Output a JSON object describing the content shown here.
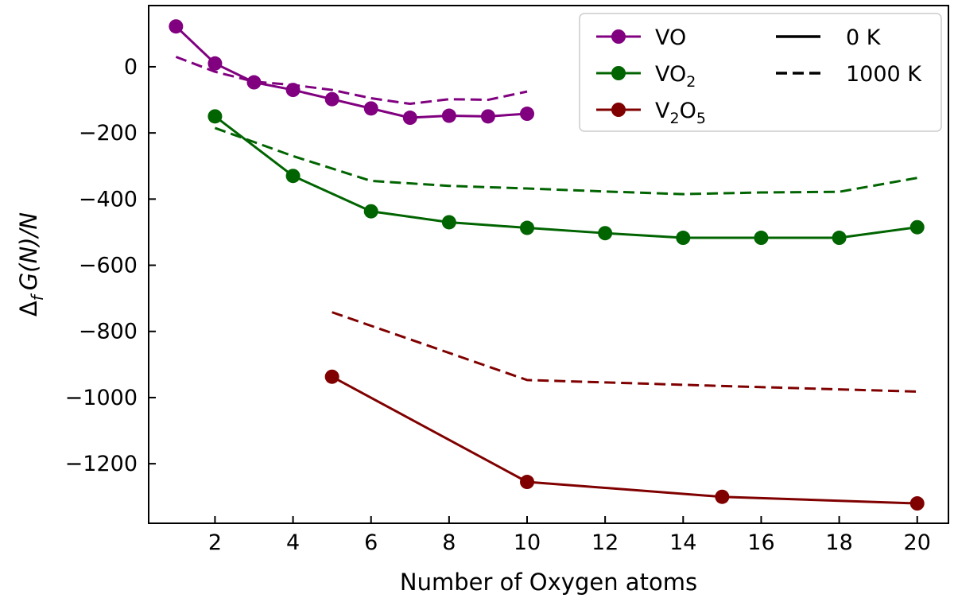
{
  "chart_data": {
    "type": "line",
    "title": "",
    "xlabel": "Number of Oxygen atoms",
    "ylabel": "Δf G(N)/N",
    "xlim": [
      0.3,
      20.8
    ],
    "ylim": [
      -1380,
      185
    ],
    "xticks": [
      2,
      4,
      6,
      8,
      10,
      12,
      14,
      16,
      18,
      20
    ],
    "yticks": [
      0,
      -200,
      -400,
      -600,
      -800,
      -1000,
      -1200
    ],
    "grid": false,
    "legend_position": "top-right",
    "series": [
      {
        "name": "VO",
        "color": "#800080",
        "line_style": "solid",
        "marker": "circle",
        "temperature": "0 K",
        "x": [
          1,
          2,
          3,
          4,
          5,
          6,
          7,
          8,
          9,
          10
        ],
        "y": [
          122,
          10,
          -47,
          -70,
          -98,
          -126,
          -154,
          -148,
          -150,
          -142
        ]
      },
      {
        "name": "VO",
        "color": "#800080",
        "line_style": "dashed",
        "marker": "none",
        "temperature": "1000 K",
        "x": [
          1,
          2,
          3,
          4,
          5,
          6,
          7,
          8,
          9,
          10
        ],
        "y": [
          30,
          -15,
          -45,
          -55,
          -70,
          -95,
          -112,
          -98,
          -100,
          -75
        ]
      },
      {
        "name": "VO2",
        "color": "#006400",
        "line_style": "solid",
        "marker": "circle",
        "temperature": "0 K",
        "x": [
          2,
          4,
          6,
          8,
          10,
          12,
          14,
          16,
          18,
          20
        ],
        "y": [
          -150,
          -330,
          -437,
          -470,
          -487,
          -503,
          -517,
          -517,
          -517,
          -485
        ]
      },
      {
        "name": "VO2",
        "color": "#006400",
        "line_style": "dashed",
        "marker": "none",
        "temperature": "1000 K",
        "x": [
          2,
          4,
          6,
          8,
          10,
          12,
          14,
          16,
          18,
          20
        ],
        "y": [
          -185,
          -270,
          -345,
          -360,
          -368,
          -377,
          -385,
          -380,
          -378,
          -336
        ]
      },
      {
        "name": "V2O5",
        "color": "#800000",
        "line_style": "solid",
        "marker": "circle",
        "temperature": "0 K",
        "x": [
          5,
          10,
          15,
          20
        ],
        "y": [
          -937,
          -1255,
          -1300,
          -1320
        ]
      },
      {
        "name": "V2O5",
        "color": "#800000",
        "line_style": "dashed",
        "marker": "none",
        "temperature": "1000 K",
        "x": [
          5,
          10,
          15,
          20
        ],
        "y": [
          -742,
          -947,
          -965,
          -982
        ]
      }
    ],
    "legend": {
      "species": [
        {
          "base": "VO",
          "sub": "",
          "mid": "",
          "sub2": "",
          "color": "#800080"
        },
        {
          "base": "VO",
          "sub": "2",
          "mid": "",
          "sub2": "",
          "color": "#006400"
        },
        {
          "base": "V",
          "sub": "2",
          "mid": "O",
          "sub2": "5",
          "color": "#800000"
        }
      ],
      "styles": [
        {
          "label": "0 K",
          "line_style": "solid"
        },
        {
          "label": "1000 K",
          "line_style": "dashed"
        }
      ]
    }
  }
}
